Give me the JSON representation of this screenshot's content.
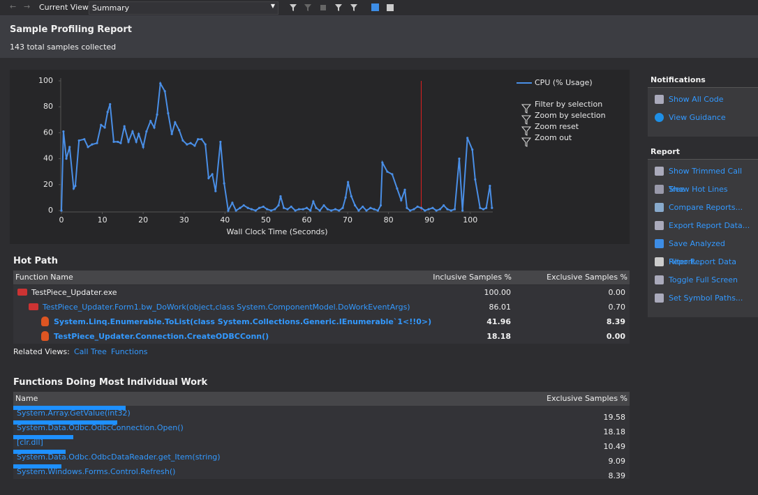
{
  "toolbar": {
    "view_label": "Current View:",
    "view": "Summary"
  },
  "header": {
    "title": "Sample Profiling Report",
    "subtitle": "143 total samples collected"
  },
  "chart_data": {
    "type": "line",
    "x_label": "Wall Clock Time (Seconds)",
    "x": [
      0,
      0.5,
      1.2,
      2,
      3,
      3.4,
      4.3,
      5.6,
      6.5,
      7.5,
      8.7,
      9.7,
      10.6,
      11.3,
      11.9,
      12.8,
      13.8,
      14.5,
      15.4,
      16.4,
      17.4,
      18.3,
      18.9,
      20,
      20.8,
      21.8,
      22.7,
      23.4,
      24.2,
      25.3,
      26.1,
      27,
      27.8,
      28.8,
      29.7,
      30.7,
      31.6,
      32.6,
      33.4,
      34.3,
      35.2,
      36,
      36.9,
      37.7,
      38.9,
      39.8,
      40.8,
      41.8,
      42.7,
      43.7,
      44.6,
      45.6,
      46.5,
      47.5,
      48.4,
      49.4,
      50.3,
      51.3,
      52.2,
      53.1,
      53.6,
      54.4,
      55.3,
      56.2,
      57.2,
      58.1,
      59.1,
      60,
      60.9,
      61.6,
      62.3,
      63.2,
      64.2,
      65.1,
      66,
      67,
      67.9,
      68.8,
      69.5,
      70.1,
      70.9,
      71.8,
      72.7,
      73.7,
      74.6,
      75.6,
      76.5,
      77.4,
      78.1,
      78.5,
      79.7,
      80.9,
      82.1,
      83.1,
      84,
      84.5,
      85.3,
      86.2,
      87.1,
      88,
      88.9,
      89.8,
      90.8,
      91.7,
      92.6,
      93.5,
      94.4,
      95.3,
      96.2,
      97.3,
      98.1,
      99.3,
      100.5,
      101.2,
      102.4,
      103.2,
      103.9,
      104.8,
      105.3
    ],
    "series": [
      {
        "name": "CPU (% Usage)",
        "color": "#4a8fe7",
        "values": [
          0,
          61,
          40,
          49,
          17,
          19,
          54,
          55,
          49,
          51,
          52,
          66,
          64,
          76,
          82,
          53,
          53,
          52,
          65,
          53,
          61,
          53,
          59,
          49,
          61,
          69,
          64,
          74,
          98,
          92,
          75,
          59,
          68,
          62,
          54,
          51,
          52,
          50,
          55,
          55,
          51,
          25,
          28,
          15,
          53,
          21,
          0,
          6,
          0,
          2,
          4,
          2,
          1,
          0,
          2,
          3,
          1,
          0,
          1,
          4,
          11,
          2,
          1,
          3,
          0,
          1,
          1,
          2,
          0,
          7,
          2,
          0,
          4,
          1,
          0,
          1,
          0,
          2,
          10,
          22,
          11,
          4,
          0,
          3,
          0,
          2,
          1,
          0,
          4,
          37,
          30,
          28,
          17,
          8,
          16,
          2,
          0,
          1,
          3,
          2,
          0,
          1,
          2,
          0,
          1,
          4,
          1,
          0,
          1,
          40,
          0,
          56,
          47,
          24,
          2,
          1,
          2,
          19,
          2
        ]
      }
    ],
    "xlim": [
      0,
      105.5
    ],
    "ylim": [
      0,
      100
    ],
    "xticks": [
      0,
      10,
      20,
      30,
      40,
      50,
      60,
      70,
      80,
      90,
      100
    ],
    "yticks": [
      0,
      20,
      40,
      60,
      80,
      100
    ],
    "marker_x": 88,
    "marker_color": "#e02020"
  },
  "chart_actions": [
    "Filter by selection",
    "Zoom by selection",
    "Zoom reset",
    "Zoom out"
  ],
  "hot_path": {
    "title": "Hot Path",
    "columns": [
      "Function Name",
      "Inclusive Samples %",
      "Exclusive Samples %"
    ],
    "rows": [
      [
        "TestPiece_Updater.exe",
        "100.00",
        "0.00"
      ],
      [
        "TestPiece_Updater.Form1.bw_DoWork(object,class System.ComponentModel.DoWorkEventArgs)",
        "86.01",
        "0.70"
      ],
      [
        "System.Linq.Enumerable.ToList(class System.Collections.Generic.IEnumerable`1<!!0>)",
        "41.96",
        "8.39"
      ],
      [
        "TestPiece_Updater.Connection.CreateODBCConn()",
        "18.18",
        "0.00"
      ]
    ],
    "related_label": "Related Views:",
    "related": [
      "Call Tree",
      "Functions"
    ]
  },
  "individual_work": {
    "title": "Functions Doing Most Individual Work",
    "columns": [
      "Name",
      "Exclusive Samples %"
    ],
    "names": [
      "System.Array.GetValue(int32)",
      "System.Data.Odbc.OdbcConnection.Open()",
      "[clr.dll]",
      "System.Data.Odbc.OdbcDataReader.get_Item(string)",
      "System.Windows.Forms.Control.Refresh()"
    ],
    "values": [
      19.58,
      18.18,
      10.49,
      9.09,
      8.39
    ],
    "color": "#1e90ff"
  },
  "notifications": {
    "title": "Notifications",
    "items": [
      "Show All Code",
      "View Guidance"
    ]
  },
  "report": {
    "title": "Report",
    "items": [
      "Show Trimmed Call Tree",
      "Show Hot Lines",
      "Compare Reports...",
      "Export Report Data...",
      "Save Analyzed Report...",
      "Filter Report Data",
      "Toggle Full Screen",
      "Set Symbol Paths..."
    ]
  }
}
